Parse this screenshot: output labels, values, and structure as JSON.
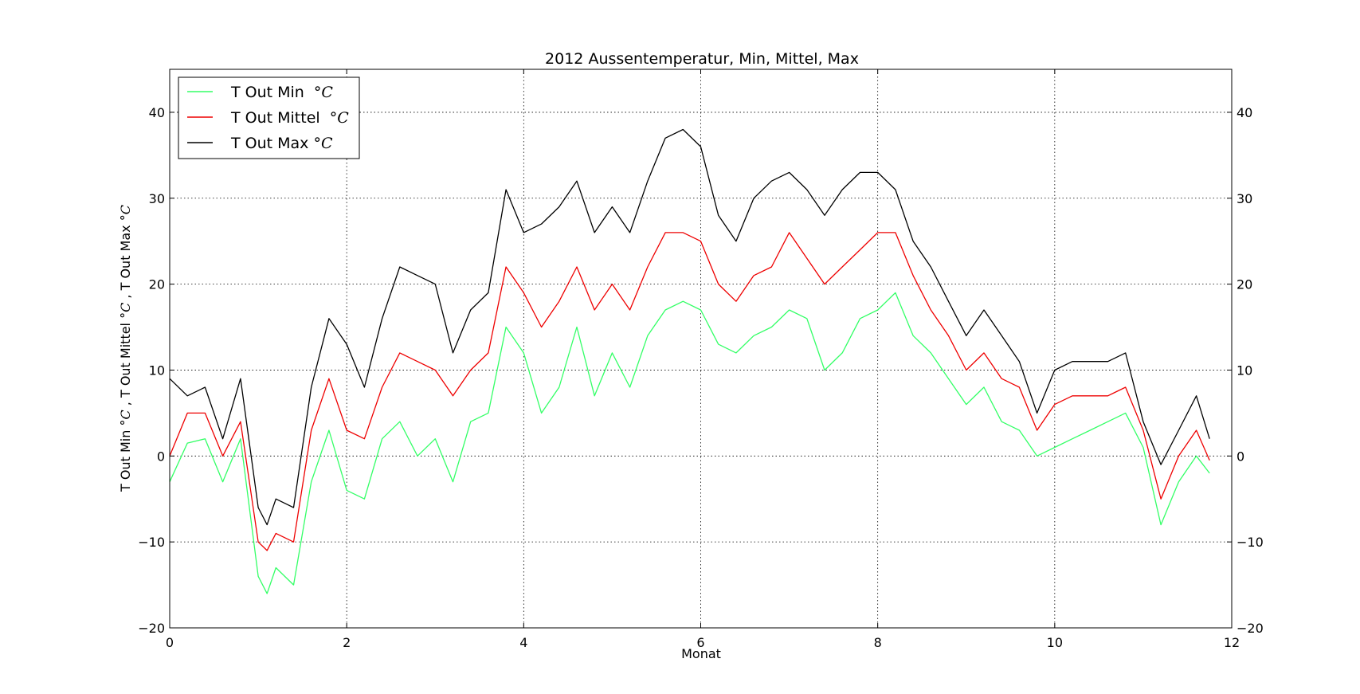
{
  "chart_data": {
    "type": "line",
    "title": "2012 Aussentemperatur, Min, Mittel, Max",
    "xlabel": "Monat",
    "ylabel": "T Out Min °C, T Out Mittel °C, T Out Max °C",
    "xlim": [
      0,
      12
    ],
    "ylim": [
      -20,
      45
    ],
    "x_ticks": [
      0,
      2,
      4,
      6,
      8,
      10,
      12
    ],
    "y_ticks": [
      -20,
      -10,
      0,
      10,
      20,
      30,
      40
    ],
    "grid": true,
    "legend_position": "top-left",
    "right_axis_mirrored": true,
    "x": [
      0.0,
      0.2,
      0.4,
      0.6,
      0.8,
      1.0,
      1.1,
      1.2,
      1.4,
      1.6,
      1.8,
      2.0,
      2.2,
      2.4,
      2.6,
      2.8,
      3.0,
      3.2,
      3.4,
      3.6,
      3.8,
      4.0,
      4.2,
      4.4,
      4.6,
      4.8,
      5.0,
      5.2,
      5.4,
      5.6,
      5.8,
      6.0,
      6.2,
      6.4,
      6.6,
      6.8,
      7.0,
      7.2,
      7.4,
      7.6,
      7.8,
      8.0,
      8.2,
      8.4,
      8.6,
      8.8,
      9.0,
      9.2,
      9.4,
      9.6,
      9.8,
      10.0,
      10.2,
      10.4,
      10.6,
      10.8,
      11.0,
      11.2,
      11.4,
      11.6,
      11.75
    ],
    "series": [
      {
        "name": "T Out Min °C",
        "color": "#33ff66",
        "values": [
          -3,
          1.5,
          2,
          -3,
          2,
          -14,
          -16,
          -13,
          -15,
          -3,
          3,
          -4,
          -5,
          2,
          4,
          0,
          2,
          -3,
          4,
          5,
          15,
          12,
          5,
          8,
          15,
          7,
          12,
          8,
          14,
          17,
          18,
          17,
          13,
          12,
          14,
          15,
          17,
          16,
          10,
          12,
          16,
          17,
          19,
          14,
          12,
          9,
          6,
          8,
          4,
          3,
          0,
          1,
          2,
          3,
          4,
          5,
          1,
          -8,
          -3,
          0,
          -2
        ]
      },
      {
        "name": "T Out Mittel °C",
        "color": "#ee0000",
        "values": [
          0,
          5,
          5,
          0,
          4,
          -10,
          -11,
          -9,
          -10,
          3,
          9,
          3,
          2,
          8,
          12,
          11,
          10,
          7,
          10,
          12,
          22,
          19,
          15,
          18,
          22,
          17,
          20,
          17,
          22,
          26,
          26,
          25,
          20,
          18,
          21,
          22,
          26,
          23,
          20,
          22,
          24,
          26,
          26,
          21,
          17,
          14,
          10,
          12,
          9,
          8,
          3,
          6,
          7,
          7,
          7,
          8,
          3,
          -5,
          0,
          3,
          -0.5
        ]
      },
      {
        "name": "T Out Max°C",
        "color": "#000000",
        "values": [
          9,
          7,
          8,
          2,
          9,
          -6,
          -8,
          -5,
          -6,
          8,
          16,
          13,
          8,
          16,
          22,
          21,
          20,
          12,
          17,
          19,
          31,
          26,
          27,
          29,
          32,
          26,
          29,
          26,
          32,
          37,
          38,
          36,
          28,
          25,
          30,
          32,
          33,
          31,
          28,
          31,
          33,
          33,
          31,
          25,
          22,
          18,
          14,
          17,
          14,
          11,
          5,
          10,
          11,
          11,
          11,
          12,
          4,
          -1,
          3,
          7,
          2
        ]
      }
    ]
  },
  "legend": [
    {
      "label": "T Out Min",
      "unit": "°C",
      "color": "#33ff66"
    },
    {
      "label": "T Out Mittel",
      "unit": "°C",
      "color": "#ee0000"
    },
    {
      "label": "T Out Max",
      "unit": "°C",
      "color": "#000000"
    }
  ],
  "ylabel_parts": {
    "min_label": "T Out Min",
    "mid_label": ", T Out Mittel",
    "max_label": ", T Out Max",
    "unit": "°C"
  }
}
